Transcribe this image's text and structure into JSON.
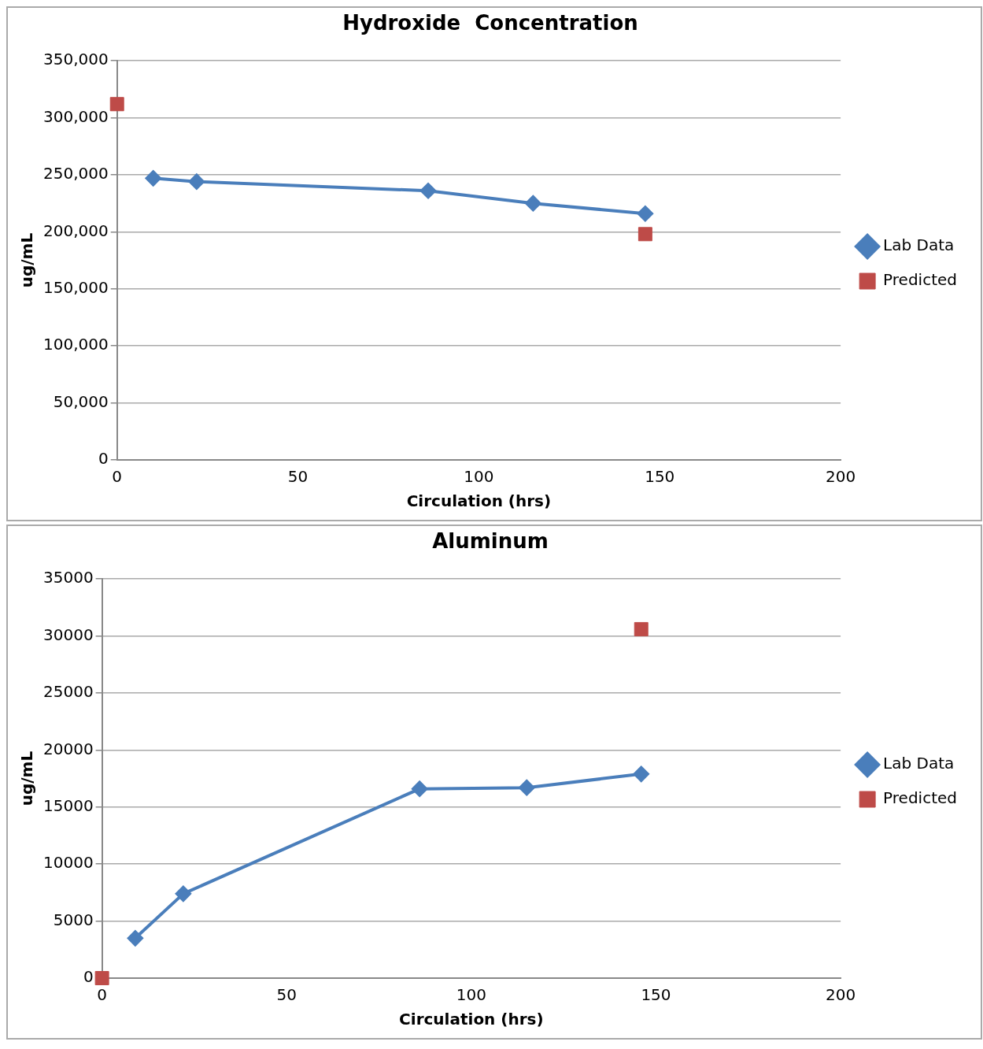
{
  "chart_data": [
    {
      "type": "line",
      "title": "Hydroxide  Concentration",
      "xlabel": "Circulation (hrs)",
      "ylabel": "ug/mL",
      "xlim": [
        0,
        200
      ],
      "xticks": [
        0,
        50,
        100,
        150,
        200
      ],
      "ylim": [
        0,
        350000
      ],
      "yticks": [
        0,
        {
          "value": 50000,
          "label": "50,000"
        },
        {
          "value": 100000,
          "label": "100,000"
        },
        {
          "value": 150000,
          "label": "150,000"
        },
        {
          "value": 200000,
          "label": "200,000"
        },
        {
          "value": 250000,
          "label": "250,000"
        },
        {
          "value": 300000,
          "label": "300,000"
        },
        {
          "value": 350000,
          "label": "350,000"
        }
      ],
      "grid": "y",
      "legend": "right",
      "series": [
        {
          "name": "Lab Data",
          "type": "line",
          "marker": "diamond",
          "color": "#4a7ebb",
          "x": [
            10,
            22,
            86,
            115,
            146
          ],
          "values": [
            247000,
            244000,
            236000,
            225000,
            216000
          ]
        },
        {
          "name": "Predicted",
          "type": "scatter",
          "marker": "square",
          "color": "#be4b48",
          "x": [
            0,
            146
          ],
          "values": [
            312000,
            198000
          ]
        }
      ]
    },
    {
      "type": "line",
      "title": "Aluminum",
      "xlabel": "Circulation (hrs)",
      "ylabel": "ug/mL",
      "xlim": [
        0,
        200
      ],
      "xticks": [
        0,
        50,
        100,
        150,
        200
      ],
      "ylim": [
        0,
        35000
      ],
      "yticks": [
        0,
        5000,
        10000,
        15000,
        20000,
        25000,
        30000,
        35000
      ],
      "grid": "y",
      "legend": "right",
      "series": [
        {
          "name": "Lab Data",
          "type": "line",
          "marker": "diamond",
          "color": "#4a7ebb",
          "x": [
            9,
            22,
            86,
            115,
            146
          ],
          "values": [
            3500,
            7400,
            16600,
            16700,
            17900
          ]
        },
        {
          "name": "Predicted",
          "type": "scatter",
          "marker": "square",
          "color": "#be4b48",
          "x": [
            0,
            146
          ],
          "values": [
            0,
            30600
          ]
        }
      ]
    }
  ]
}
